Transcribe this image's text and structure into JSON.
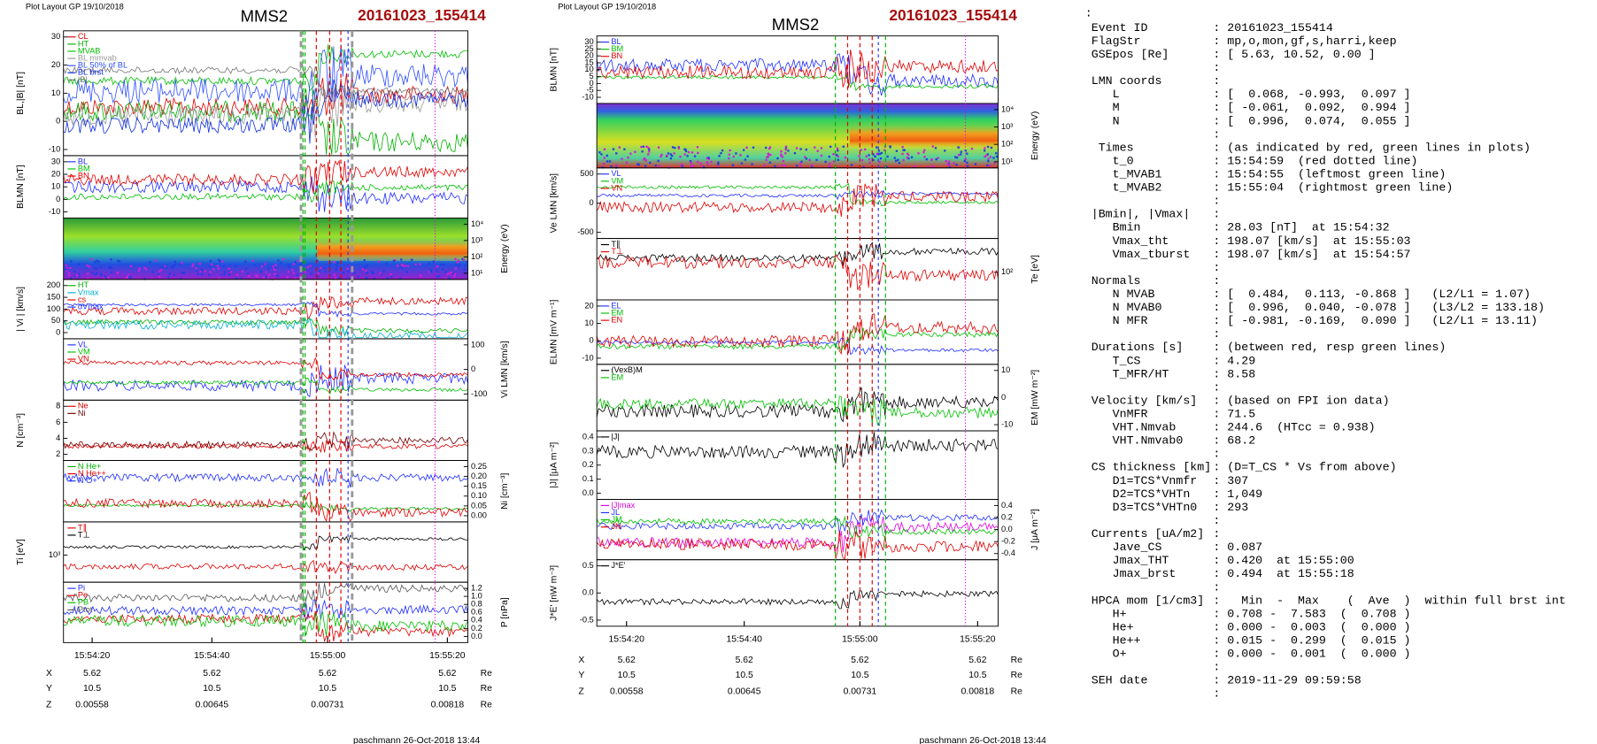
{
  "plots": [
    {
      "layout": "Plot Layout GP 19/10/2018",
      "spacecraft": "MMS2",
      "event": "20161023_155414",
      "panels": [
        {
          "ylabel": "BL,|B| [nT]",
          "yticks": [
            "30",
            "20",
            "10",
            "0",
            "-10"
          ],
          "legend": [
            {
              "text": "CL",
              "color": "#e00000"
            },
            {
              "text": "HT",
              "color": "#00b000"
            },
            {
              "text": "MVAB",
              "color": "#00c000"
            },
            {
              "text": "BL mmvab",
              "color": "#999999"
            },
            {
              "text": "BL 50% of BL",
              "color": "#3050ff"
            },
            {
              "text": "BL brst",
              "color": "#1030e0"
            },
            {
              "text": "|B|",
              "color": "#777777"
            }
          ]
        },
        {
          "ylabel": "BLMN [nT]",
          "yticks": [
            "30",
            "20",
            "10",
            "0",
            "-10"
          ],
          "legend": [
            {
              "text": "BL",
              "color": "#2030ff"
            },
            {
              "text": "BM",
              "color": "#00c000"
            },
            {
              "text": "BN",
              "color": "#e00000"
            }
          ]
        },
        {
          "spectrogram": true,
          "y2label": "Energy (eV)",
          "y2ticks": [
            "10⁴",
            "10³",
            "10²",
            "10¹"
          ]
        },
        {
          "ylabel": "| Vi | [km/s]",
          "yticks": [
            "200",
            "150",
            "100",
            "50",
            "0"
          ],
          "legend": [
            {
              "text": "HT",
              "color": "#00b000"
            },
            {
              "text": "Vmax",
              "color": "#00b0d0"
            },
            {
              "text": "cs",
              "color": "#e00000"
            },
            {
              "text": "dVmax",
              "color": "#2030ff"
            }
          ]
        },
        {
          "y2label": "Vi LMN [km/s]",
          "y2ticks": [
            "100",
            "0",
            "-100"
          ],
          "legend": [
            {
              "text": "VL",
              "color": "#2030ff"
            },
            {
              "text": "VM",
              "color": "#00c000"
            },
            {
              "text": "VN",
              "color": "#e00000"
            }
          ]
        },
        {
          "ylabel": "N [cm⁻³]",
          "yticks": [
            "8",
            "6",
            "4",
            "2"
          ],
          "legend": [
            {
              "text": "Ne",
              "color": "#e00000"
            },
            {
              "text": "Ni",
              "color": "#700000"
            }
          ]
        },
        {
          "y2label": "Ni [cm⁻³]",
          "y2ticks": [
            "0.25",
            "0.20",
            "0.15",
            "0.10",
            "0.05",
            "0.00"
          ],
          "legend": [
            {
              "text": "N He+",
              "color": "#00b000"
            },
            {
              "text": "N He++",
              "color": "#e00000"
            },
            {
              "text": "N O+",
              "color": "#2030ff"
            }
          ]
        },
        {
          "ylabel": "Ti [eV]",
          "yticks": [
            "10³"
          ],
          "legend": [
            {
              "text": "T∥",
              "color": "#e00000"
            },
            {
              "text": "T⊥",
              "color": "#000000"
            }
          ]
        },
        {
          "y2label": "P [nPa]",
          "y2ticks": [
            "1.2",
            "1.0",
            "0.8",
            "0.6",
            "0.4",
            "0.2",
            "0.0"
          ],
          "legend": [
            {
              "text": "Pi",
              "color": "#2030ff"
            },
            {
              "text": "Pe",
              "color": "#e00000"
            },
            {
              "text": "PB",
              "color": "#00c000"
            },
            {
              "text": "Ptot",
              "color": "#555555"
            }
          ]
        }
      ],
      "times": [
        "15:54:20",
        "15:54:40",
        "15:55:00",
        "15:55:20"
      ],
      "rows": [
        {
          "label": "X",
          "values": [
            "5.62",
            "5.62",
            "5.62",
            "5.62"
          ],
          "unit": "Re"
        },
        {
          "label": "Y",
          "values": [
            "10.5",
            "10.5",
            "10.5",
            "10.5"
          ],
          "unit": "Re"
        },
        {
          "label": "Z",
          "values": [
            "0.00558",
            "0.00645",
            "0.00731",
            "0.00818"
          ],
          "unit": "Re"
        }
      ],
      "footer": "paschmann 26-Oct-2018 13:44"
    },
    {
      "layout": "Plot Layout GP 19/10/2018",
      "spacecraft": "MMS2",
      "event": "20161023_155414",
      "panels": [
        {
          "ylabel": "BLMN [nT]",
          "yticks": [
            "30",
            "25",
            "20",
            "15",
            "10",
            "5",
            "0",
            "-5",
            "-10"
          ],
          "legend": [
            {
              "text": "BL",
              "color": "#2030ff"
            },
            {
              "text": "BM",
              "color": "#00c000"
            },
            {
              "text": "BN",
              "color": "#e00000"
            }
          ]
        },
        {
          "spectrogram": true,
          "y2label": "Energy (eV)",
          "y2ticks": [
            "10⁴",
            "10³",
            "10²",
            "10¹"
          ]
        },
        {
          "ylabel": "Ve LMN [km/s]",
          "yticks": [
            "500",
            "0",
            "-500"
          ],
          "legend": [
            {
              "text": "VL",
              "color": "#2030ff"
            },
            {
              "text": "VM",
              "color": "#00c000"
            },
            {
              "text": "VN",
              "color": "#e00000"
            }
          ]
        },
        {
          "y2label": "Te [eV]",
          "y2ticks": [
            "10²"
          ],
          "legend": [
            {
              "text": "T∥",
              "color": "#000000"
            },
            {
              "text": "T⊥",
              "color": "#e00000"
            }
          ]
        },
        {
          "ylabel": "ELMN [mV m⁻¹]",
          "yticks": [
            "20",
            "10",
            "0",
            "-10"
          ],
          "legend": [
            {
              "text": "EL",
              "color": "#2030ff"
            },
            {
              "text": "EM",
              "color": "#00c000"
            },
            {
              "text": "EN",
              "color": "#e00000"
            }
          ]
        },
        {
          "y2label": "EM [mW m⁻²]",
          "y2ticks": [
            "10",
            "0",
            "-10"
          ],
          "legend": [
            {
              "text": "(VexB)M",
              "color": "#000000"
            },
            {
              "text": "EM",
              "color": "#00c000"
            }
          ]
        },
        {
          "ylabel": "|J| [μA m⁻²]",
          "yticks": [
            "0.4",
            "0.3",
            "0.2",
            "0.1",
            "0.0"
          ],
          "legend": [
            {
              "text": "|J|",
              "color": "#000000"
            }
          ]
        },
        {
          "y2label": "J [μA m⁻²]",
          "y2ticks": [
            "0.4",
            "0.2",
            "0.0",
            "-0.2",
            "-0.4"
          ],
          "legend": [
            {
              "text": "|J|max",
              "color": "#e000e0"
            },
            {
              "text": "JL",
              "color": "#2030ff"
            },
            {
              "text": "JM",
              "color": "#00c000"
            },
            {
              "text": "JN",
              "color": "#e00000"
            }
          ]
        },
        {
          "ylabel": "J*E' [nW m⁻³]",
          "yticks": [
            "0.5",
            "0.0",
            "-0.5"
          ],
          "legend": [
            {
              "text": "J*E'",
              "color": "#000000"
            }
          ]
        }
      ],
      "times": [
        "15:54:20",
        "15:54:40",
        "15:55:00",
        "15:55:20"
      ],
      "rows": [
        {
          "label": "X",
          "values": [
            "5.62",
            "5.62",
            "5.62",
            "5.62"
          ],
          "unit": "Re"
        },
        {
          "label": "Y",
          "values": [
            "10.5",
            "10.5",
            "10.5",
            "10.5"
          ],
          "unit": "Re"
        },
        {
          "label": "Z",
          "values": [
            "0.00558",
            "0.00645",
            "0.00731",
            "0.00818"
          ],
          "unit": "Re"
        }
      ],
      "footer": "paschmann 26-Oct-2018 13:44"
    }
  ],
  "listing": {
    "top": ":",
    "lines": [
      {
        "key": "Event ID",
        "value": ": 20161023_155414"
      },
      {
        "key": "FlagStr",
        "value": ": mp,o,mon,gf,s,harri,keep"
      },
      {
        "key": "GSEpos [Re]",
        "value": ": [ 5.63, 10.52, 0.00 ]"
      },
      {
        "value": ":"
      },
      {
        "key": "LMN coords",
        "value": ":"
      },
      {
        "key": "   L",
        "value": ": [  0.068, -0.993,  0.097 ]"
      },
      {
        "key": "   M",
        "value": ": [ -0.061,  0.092,  0.994 ]"
      },
      {
        "key": "   N",
        "value": ": [  0.996,  0.074,  0.055 ]"
      },
      {
        "value": ":"
      },
      {
        "key": " Times",
        "value": ": (as indicated by red, green lines in plots)"
      },
      {
        "key": "   t_0",
        "value": ": 15:54:59  (red dotted line)"
      },
      {
        "key": "   t_MVAB1",
        "value": ": 15:54:55  (leftmost green line)"
      },
      {
        "key": "   t_MVAB2",
        "value": ": 15:55:04  (rightmost green line)"
      },
      {
        "value": ":"
      },
      {
        "key": "|Bmin|, |Vmax|",
        "value": ":"
      },
      {
        "key": "   Bmin",
        "value": ": 28.03 [nT]  at 15:54:32"
      },
      {
        "key": "   Vmax_tht",
        "value": ": 198.07 [km/s]  at 15:55:03"
      },
      {
        "key": "   Vmax_tburst",
        "value": ": 198.07 [km/s]  at 15:54:57"
      },
      {
        "value": ":"
      },
      {
        "key": "Normals",
        "value": ":"
      },
      {
        "key": "   N MVAB",
        "value": ": [  0.484,  0.113, -0.868 ]   (L2/L1 = 1.07)"
      },
      {
        "key": "   N MVAB0",
        "value": ": [  0.996,  0.040, -0.078 ]   (L3/L2 = 133.18)"
      },
      {
        "key": "   N MFR",
        "value": ": [ -0.981, -0.169,  0.090 ]   (L2/L1 = 13.11)"
      },
      {
        "value": ":"
      },
      {
        "key": "Durations [s]",
        "value": ": (between red, resp green lines)"
      },
      {
        "key": "   T_CS",
        "value": ": 4.29"
      },
      {
        "key": "   T_MFR/HT",
        "value": ": 8.58"
      },
      {
        "value": ":"
      },
      {
        "key": "Velocity [km/s]",
        "value": ": (based on FPI ion data)"
      },
      {
        "key": "   VnMFR",
        "value": ": 71.5"
      },
      {
        "key": "   VHT.Nmvab",
        "value": ": 244.6  (HTcc = 0.938)"
      },
      {
        "key": "   VHT.Nmvab0",
        "value": ": 68.2"
      },
      {
        "value": ":"
      },
      {
        "key": "CS thickness [km]",
        "value": ": (D=T_CS * Vs from above)"
      },
      {
        "key": "   D1=TCS*Vnmfr",
        "value": ": 307"
      },
      {
        "key": "   D2=TCS*VHTn",
        "value": ": 1,049"
      },
      {
        "key": "   D3=TCS*VHTn0",
        "value": ": 293"
      },
      {
        "value": ":"
      },
      {
        "key": "Currents [uA/m2]",
        "value": ":"
      },
      {
        "key": "   Jave_CS",
        "value": ": 0.087"
      },
      {
        "key": "   Jmax_THT",
        "value": ": 0.420  at 15:55:00"
      },
      {
        "key": "   Jmax_brst",
        "value": ": 0.494  at 15:55:18"
      },
      {
        "value": ":"
      },
      {
        "key": "HPCA mom [1/cm3]",
        "value": ":   Min  -  Max    (  Ave  )  within full brst int"
      },
      {
        "key": "   H+",
        "value": ": 0.708 -  7.583  (  0.708 )"
      },
      {
        "key": "   He+",
        "value": ": 0.000 -  0.003  (  0.000 )"
      },
      {
        "key": "   He++",
        "value": ": 0.015 -  0.299  (  0.015 )"
      },
      {
        "key": "   O+",
        "value": ": 0.000 -  0.001  (  0.000 )"
      },
      {
        "value": ":"
      },
      {
        "key": "SEH date",
        "value": ": 2019-11-29 09:59:58"
      },
      {
        "value": ":"
      }
    ]
  }
}
